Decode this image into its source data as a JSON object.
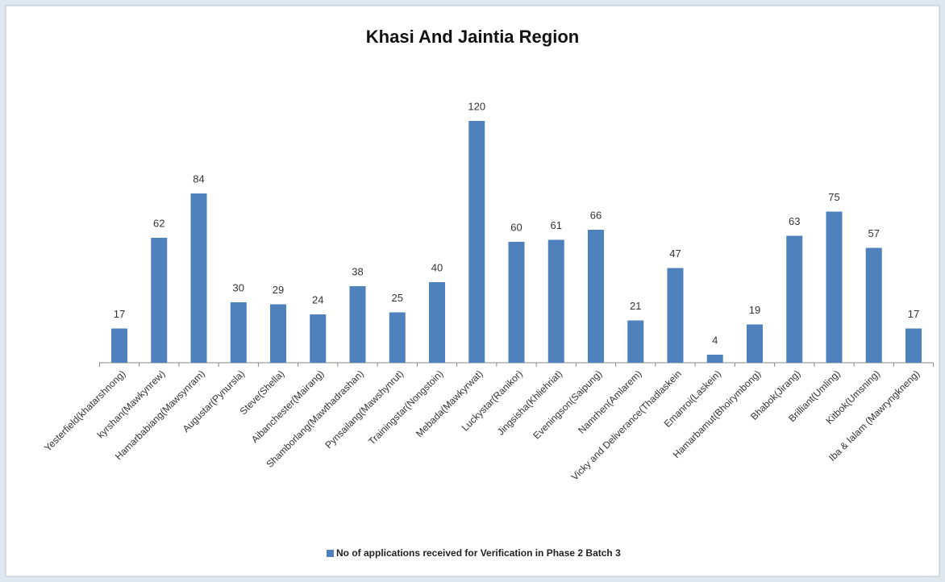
{
  "chart_data": {
    "type": "bar",
    "title": "Khasi And Jaintia Region",
    "categories": [
      "Yesterfield(khatarshnong)",
      "kyrshan(Mawkynrew)",
      "Hamarbabiang(Mawsynram)",
      "Augustar(Pynursla)",
      "Steve(Shella)",
      "Aibanchester(Mairang)",
      "Shamborlang(Mawthadrashan)",
      "Pynsailang(Mawshynrut)",
      "Trainingstar(Nongstoin)",
      "Mebada(Mawkyrwat)",
      "Luckystar(Ranikor)",
      "Jingsisha(Khliehriat)",
      "Eveningson(Saipung)",
      "Namrhen(Amlarem)",
      "Vicky and Deliverance(Thadlaskein",
      "Emanroi(Laskein)",
      "Hamarbamut(Bhoirymbong)",
      "Bhabok(Jirang)",
      "Brilliant(Umling)",
      "Kitbok(Umsning)",
      "Iba & Ialam (Mawryngkneng)"
    ],
    "series": [
      {
        "name": "No of applications received for Verification in Phase 2 Batch 3",
        "color": "#4f81bd",
        "values": [
          17,
          62,
          84,
          30,
          29,
          24,
          38,
          25,
          40,
          120,
          60,
          61,
          66,
          21,
          47,
          4,
          19,
          63,
          75,
          57,
          17
        ]
      }
    ],
    "ylim": [
      0,
      120
    ],
    "legend": "bottom"
  }
}
